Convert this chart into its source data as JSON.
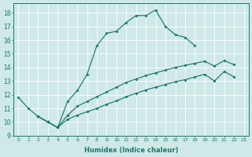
{
  "xlabel": "Humidex (Indice chaleur)",
  "bg_color": "#cfe8e8",
  "grid_color": "#ffffff",
  "line_color": "#1a7a6e",
  "xlim": [
    -0.5,
    23.5
  ],
  "ylim": [
    9.0,
    18.7
  ],
  "yticks": [
    9,
    10,
    11,
    12,
    13,
    14,
    15,
    16,
    17,
    18
  ],
  "xticks": [
    0,
    1,
    2,
    3,
    4,
    5,
    6,
    7,
    8,
    9,
    10,
    11,
    12,
    13,
    14,
    15,
    16,
    17,
    18,
    19,
    20,
    21,
    22,
    23
  ],
  "curve1_x": [
    0,
    1,
    2,
    3,
    4,
    5,
    6,
    7,
    8,
    9,
    10,
    11,
    12,
    13,
    14,
    15,
    16,
    17,
    18
  ],
  "curve1_y": [
    11.8,
    11.0,
    10.4,
    10.0,
    9.6,
    11.5,
    12.3,
    13.5,
    15.6,
    16.5,
    16.65,
    17.3,
    17.8,
    17.8,
    18.2,
    17.0,
    16.4,
    16.2,
    15.6
  ],
  "curve2_x": [
    2,
    3,
    4,
    5,
    6,
    7,
    8,
    9,
    10,
    11,
    12,
    13,
    14,
    15,
    16,
    17,
    18,
    19,
    20,
    21,
    22
  ],
  "curve2_y": [
    10.4,
    10.0,
    9.6,
    10.5,
    11.15,
    11.5,
    11.85,
    12.2,
    12.55,
    12.9,
    13.15,
    13.4,
    13.6,
    13.8,
    14.0,
    14.15,
    14.3,
    14.45,
    14.1,
    14.5,
    14.2
  ],
  "curve3_x": [
    2,
    3,
    4,
    5,
    6,
    7,
    8,
    9,
    10,
    11,
    12,
    13,
    14,
    15,
    16,
    17,
    18,
    19,
    20,
    21,
    22
  ],
  "curve3_y": [
    10.4,
    10.0,
    9.6,
    10.2,
    10.5,
    10.75,
    11.0,
    11.3,
    11.55,
    11.85,
    12.1,
    12.35,
    12.55,
    12.75,
    12.95,
    13.1,
    13.3,
    13.5,
    13.0,
    13.7,
    13.3
  ]
}
